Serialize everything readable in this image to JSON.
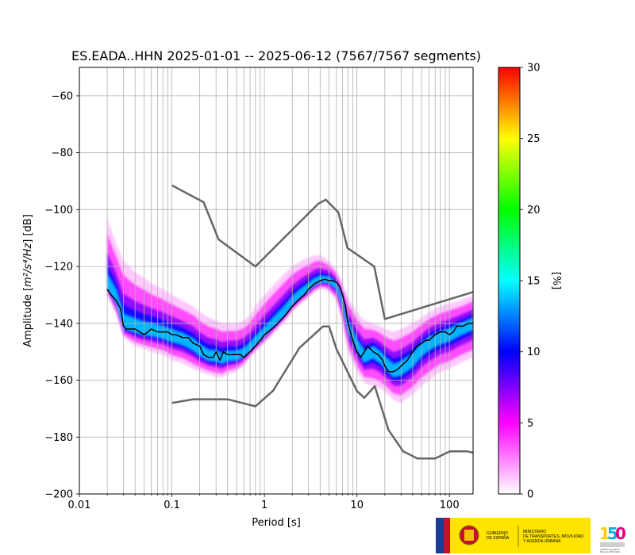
{
  "chart_data": {
    "type": "heatmap",
    "title": "ES.EADA..HHN   2025-01-01 -- 2025-06-12  (7567/7567 segments)",
    "xlabel": "Period [s]",
    "ylabel_prefix": "Amplitude [",
    "ylabel_math": "m²/s⁴/Hz",
    "ylabel_suffix": "] [dB]",
    "x_scale": "log",
    "xlim": [
      0.01,
      180
    ],
    "ylim": [
      -200,
      -50
    ],
    "grid": true,
    "x_ticks": [
      {
        "value": 0.01,
        "label": "0.01"
      },
      {
        "value": 0.1,
        "label": "0.1"
      },
      {
        "value": 1,
        "label": "1"
      },
      {
        "value": 10,
        "label": "10"
      },
      {
        "value": 100,
        "label": "100"
      }
    ],
    "y_ticks": [
      {
        "value": -60,
        "label": "−60"
      },
      {
        "value": -80,
        "label": "−80"
      },
      {
        "value": -100,
        "label": "−100"
      },
      {
        "value": -120,
        "label": "−120"
      },
      {
        "value": -140,
        "label": "−140"
      },
      {
        "value": -160,
        "label": "−160"
      },
      {
        "value": -180,
        "label": "−180"
      },
      {
        "value": -200,
        "label": "−200"
      }
    ],
    "colorbar": {
      "label": "[%]",
      "min": 0,
      "max": 30,
      "ticks": [
        {
          "value": 0,
          "label": "0"
        },
        {
          "value": 5,
          "label": "5"
        },
        {
          "value": 10,
          "label": "10"
        },
        {
          "value": 15,
          "label": "15"
        },
        {
          "value": 20,
          "label": "20"
        },
        {
          "value": 25,
          "label": "25"
        },
        {
          "value": 30,
          "label": "30"
        }
      ],
      "colors": [
        "#ffffff",
        "#ff00ff",
        "#0000ff",
        "#00ffff",
        "#00ff00",
        "#ffff00",
        "#ff0000"
      ]
    },
    "density_profile": {
      "period": [
        0.02,
        0.025,
        0.03,
        0.04,
        0.05,
        0.06,
        0.08,
        0.1,
        0.13,
        0.17,
        0.2,
        0.25,
        0.3,
        0.35,
        0.4,
        0.5,
        0.6,
        0.7,
        0.8,
        1,
        1.3,
        1.7,
        2,
        2.5,
        3,
        3.5,
        4,
        4.5,
        5,
        6,
        7,
        8,
        10,
        12,
        15,
        18,
        20,
        25,
        30,
        40,
        50,
        60,
        80,
        100,
        130,
        180
      ],
      "mode_db": [
        -127,
        -132,
        -141,
        -142,
        -143,
        -143,
        -144,
        -145,
        -146,
        -148,
        -150,
        -152,
        -152,
        -153,
        -152,
        -152,
        -151,
        -149,
        -147,
        -144,
        -140,
        -136,
        -133,
        -130,
        -128,
        -126,
        -125,
        -125,
        -125,
        -127,
        -133,
        -141,
        -148,
        -152,
        -150,
        -152,
        -154,
        -157,
        -156,
        -153,
        -149,
        -147,
        -145,
        -144,
        -142,
        -140
      ],
      "low_db": [
        -130,
        -137,
        -145,
        -148,
        -149,
        -150,
        -151,
        -153,
        -154,
        -156,
        -157,
        -158,
        -159,
        -159,
        -158,
        -157,
        -155,
        -152,
        -150,
        -147,
        -143,
        -139,
        -136,
        -133,
        -131,
        -129,
        -128,
        -128,
        -129,
        -132,
        -140,
        -150,
        -157,
        -161,
        -162,
        -163,
        -164,
        -167,
        -168,
        -165,
        -162,
        -160,
        -157,
        -156,
        -154,
        -152
      ],
      "high_db": [
        -103,
        -112,
        -118,
        -122,
        -124,
        -126,
        -128,
        -130,
        -132,
        -134,
        -136,
        -138,
        -139,
        -140,
        -140,
        -140,
        -139,
        -137,
        -134,
        -130,
        -126,
        -122,
        -120,
        -118,
        -117,
        -116,
        -116,
        -117,
        -118,
        -121,
        -126,
        -131,
        -136,
        -139,
        -140,
        -141,
        -142,
        -143,
        -142,
        -140,
        -138,
        -136,
        -134,
        -133,
        -132,
        -130
      ]
    },
    "mean_curve": {
      "period": [
        0.02,
        0.022,
        0.025,
        0.028,
        0.03,
        0.032,
        0.035,
        0.04,
        0.045,
        0.05,
        0.055,
        0.06,
        0.07,
        0.08,
        0.09,
        0.1,
        0.11,
        0.13,
        0.15,
        0.17,
        0.2,
        0.22,
        0.25,
        0.28,
        0.3,
        0.33,
        0.36,
        0.4,
        0.45,
        0.5,
        0.55,
        0.6,
        0.7,
        0.8,
        0.9,
        1,
        1.2,
        1.4,
        1.7,
        2,
        2.3,
        2.7,
        3,
        3.5,
        4,
        4.5,
        5,
        5.5,
        6,
        6.5,
        7,
        7.5,
        8,
        9,
        10,
        11,
        12,
        13,
        14,
        15,
        17,
        19,
        20,
        22,
        25,
        28,
        30,
        35,
        40,
        45,
        50,
        55,
        60,
        70,
        80,
        90,
        100,
        110,
        120,
        140,
        160,
        180
      ],
      "db": [
        -128,
        -130,
        -132,
        -135,
        -141,
        -142,
        -142,
        -142,
        -143,
        -144,
        -143,
        -142,
        -143,
        -143,
        -143,
        -144,
        -144,
        -145,
        -145,
        -147,
        -148,
        -151,
        -152,
        -152,
        -150,
        -153,
        -150,
        -151,
        -151,
        -151,
        -151,
        -152,
        -150,
        -148,
        -146,
        -144,
        -142,
        -140,
        -137,
        -134,
        -132,
        -130,
        -128,
        -126,
        -125,
        -124.5,
        -125,
        -125,
        -125.5,
        -127,
        -130,
        -134,
        -140,
        -146,
        -150,
        -152,
        -150,
        -148,
        -149,
        -150,
        -151,
        -153,
        -155,
        -157,
        -157,
        -156,
        -155,
        -153,
        -150,
        -148,
        -147,
        -146,
        -146,
        -144,
        -143,
        -143,
        -144,
        -143,
        -141,
        -141,
        -140,
        -140
      ]
    },
    "noise_models": [
      {
        "period": [
          0.1,
          0.17,
          0.4,
          0.8,
          1.24,
          2.4,
          4.3,
          5,
          6,
          10,
          12,
          15.6,
          21.9,
          31.6,
          45,
          70,
          101,
          154,
          180
        ],
        "db": [
          -168,
          -166.7,
          -166.7,
          -169.2,
          -163.7,
          -148.6,
          -141.1,
          -141.1,
          -149,
          -163.8,
          -166.2,
          -162.1,
          -177.5,
          -185,
          -187.5,
          -187.5,
          -185,
          -185,
          -185.5
        ]
      },
      {
        "period": [
          0.1,
          0.22,
          0.32,
          0.8,
          3.8,
          4.6,
          6.3,
          7.9,
          15.4,
          20,
          180
        ],
        "db": [
          -91.5,
          -97.4,
          -110.5,
          -120,
          -98,
          -96.5,
          -101,
          -113.5,
          -120,
          -138.5,
          -129
        ]
      }
    ]
  },
  "logos": {
    "ministry_lines": [
      "MINISTERIO",
      "DE TRANSPORTES, MOVILIDAD",
      "Y AGENDA URBANA"
    ],
    "government_lines": [
      "GOBIERNO",
      "DE ESPAÑA"
    ],
    "ign_lines": [
      "Instituto Geográfico",
      "Nacional 1870-2020"
    ]
  }
}
